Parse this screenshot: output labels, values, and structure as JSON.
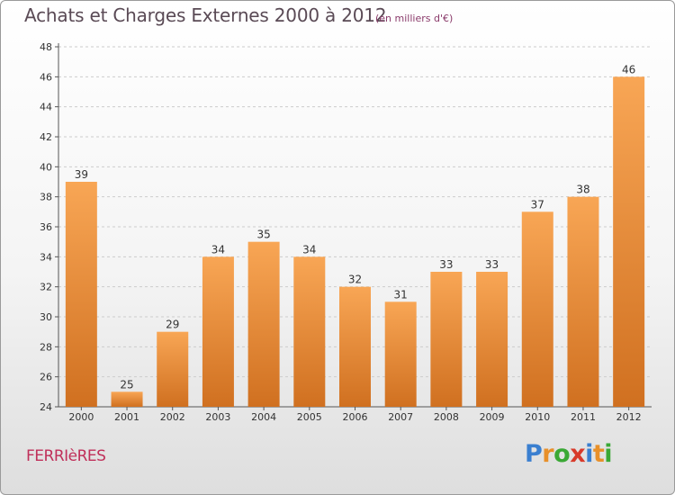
{
  "title": "Achats et Charges Externes 2000 à 2012",
  "subtitle": "(en milliers d'€)",
  "commune": "FERRIèRES",
  "logo": {
    "letters": [
      "P",
      "r",
      "o",
      "x",
      "i",
      "t",
      "i"
    ],
    "colors": [
      "#3a7fd0",
      "#e8902a",
      "#3aa835",
      "#d83a2a",
      "#3a7fd0",
      "#e8902a",
      "#3aa835"
    ]
  },
  "colors": {
    "bar_top": "#f8a655",
    "bar_bottom": "#d07020",
    "axis": "#555555",
    "grid": "#cccccc"
  },
  "chart_data": {
    "type": "bar",
    "categories": [
      "2000",
      "2001",
      "2002",
      "2003",
      "2004",
      "2005",
      "2006",
      "2007",
      "2008",
      "2009",
      "2010",
      "2011",
      "2012"
    ],
    "values": [
      39,
      25,
      29,
      34,
      35,
      34,
      32,
      31,
      33,
      33,
      37,
      38,
      46
    ],
    "ylim": [
      24,
      48
    ],
    "yticks": [
      24,
      26,
      28,
      30,
      32,
      34,
      36,
      38,
      40,
      42,
      44,
      46,
      48
    ],
    "grid": "horizontal dashed",
    "data_labels": true
  }
}
